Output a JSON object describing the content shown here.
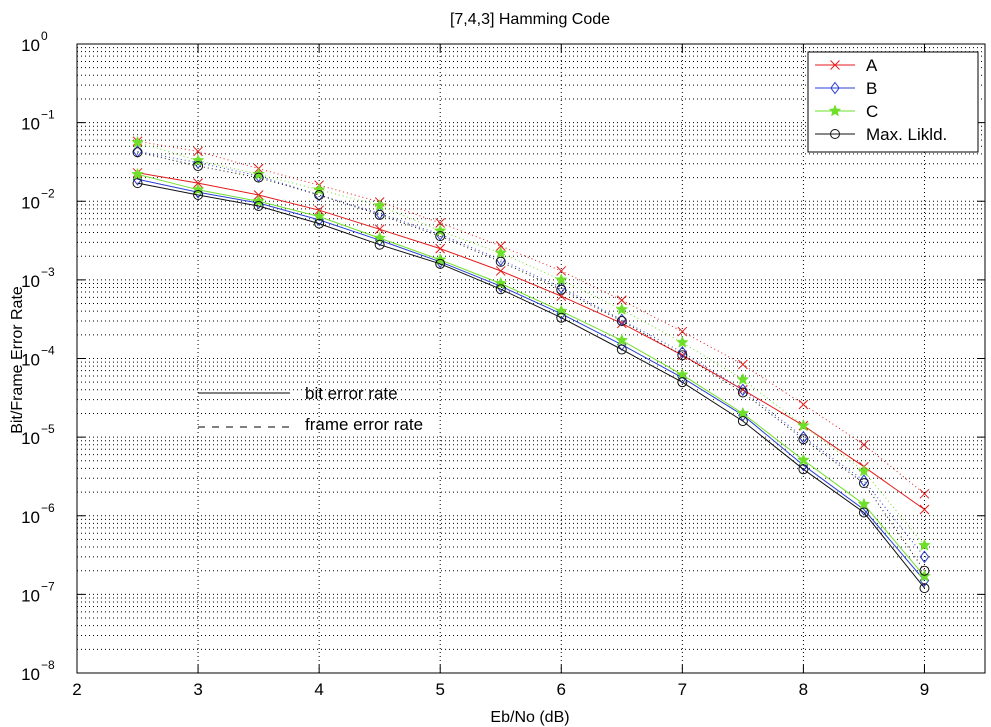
{
  "chart_data": {
    "type": "line",
    "title": "[7,4,3] Hamming Code",
    "xlabel": "Eb/No (dB)",
    "ylabel": "Bit/Frame Error Rate",
    "xlim": [
      2,
      9.5
    ],
    "ylim": [
      1e-08,
      1
    ],
    "yscale": "log",
    "grid": true,
    "x_ticks": [
      "2",
      "3",
      "4",
      "5",
      "6",
      "7",
      "8",
      "9"
    ],
    "y_tick_base": "10",
    "y_tick_exponents": [
      "0",
      "−1",
      "−2",
      "−3",
      "−4",
      "−5",
      "−6",
      "−7",
      "−8"
    ],
    "legend_position": "top-right",
    "x": [
      2.5,
      3,
      3.5,
      4,
      4.5,
      5,
      5.5,
      6,
      6.5,
      7,
      7.5,
      8,
      8.5,
      9
    ],
    "series": [
      {
        "name": "A",
        "color": "#e41a1a",
        "marker": "x",
        "bit_error_rate": [
          0.023,
          0.017,
          0.012,
          0.0077,
          0.0044,
          0.0025,
          0.0013,
          0.00062,
          0.00028,
          0.00011,
          4e-05,
          1.4e-05,
          4.2e-06,
          1.2e-06
        ],
        "frame_error_rate": [
          0.058,
          0.043,
          0.026,
          0.016,
          0.0098,
          0.0053,
          0.0027,
          0.0013,
          0.00055,
          0.00022,
          8.4e-05,
          2.6e-05,
          8e-06,
          1.9e-06
        ]
      },
      {
        "name": "B",
        "color": "#2b3fd6",
        "marker": "diamond",
        "bit_error_rate": [
          0.019,
          0.013,
          0.0095,
          0.0058,
          0.0032,
          0.0017,
          0.00083,
          0.00037,
          0.00015,
          5.7e-05,
          1.9e-05,
          4.4e-06,
          1.2e-06,
          1.5e-07
        ],
        "frame_error_rate": [
          0.043,
          0.031,
          0.021,
          0.012,
          0.007,
          0.0038,
          0.0018,
          0.0008,
          0.00031,
          0.00012,
          4e-05,
          1e-05,
          2.8e-06,
          3e-07
        ]
      },
      {
        "name": "C",
        "color": "#6ee02a",
        "marker": "star",
        "bit_error_rate": [
          0.022,
          0.014,
          0.01,
          0.0064,
          0.0034,
          0.0018,
          0.0009,
          0.0004,
          0.00017,
          6.2e-05,
          2e-05,
          5.1e-06,
          1.4e-06,
          1.7e-07
        ],
        "frame_error_rate": [
          0.056,
          0.033,
          0.022,
          0.014,
          0.0088,
          0.0042,
          0.0022,
          0.001,
          0.00042,
          0.00016,
          5.4e-05,
          1.4e-05,
          3.7e-06,
          4.2e-07
        ]
      },
      {
        "name": "Max. Likld.",
        "color": "#111111",
        "marker": "circle",
        "bit_error_rate": [
          0.017,
          0.012,
          0.0087,
          0.0052,
          0.0028,
          0.0016,
          0.00076,
          0.00033,
          0.00013,
          5e-05,
          1.6e-05,
          3.9e-06,
          1.1e-06,
          1.2e-07
        ],
        "frame_error_rate": [
          0.042,
          0.028,
          0.02,
          0.012,
          0.0067,
          0.0036,
          0.0017,
          0.00075,
          0.0003,
          0.00011,
          3.7e-05,
          9.4e-06,
          2.6e-06,
          2e-07
        ]
      }
    ],
    "annotations": {
      "solid": "bit error rate",
      "dashed": "frame error rate"
    }
  }
}
